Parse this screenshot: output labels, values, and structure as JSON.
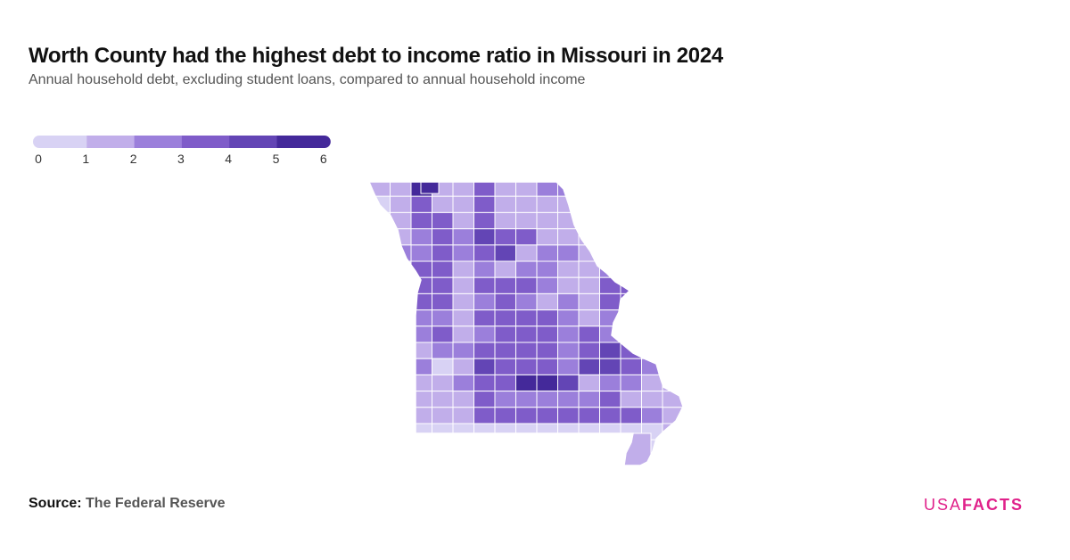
{
  "header": {
    "title": "Worth County had the highest debt to income ratio in Missouri in 2024",
    "subtitle": "Annual household debt, excluding student loans, compared to annual household income"
  },
  "legend": {
    "ticks": [
      "0",
      "1",
      "2",
      "3",
      "4",
      "5",
      "6"
    ],
    "colors": [
      "#d8d2f4",
      "#c1aeea",
      "#9b7fdb",
      "#7f5cc9",
      "#6345b5",
      "#44299a"
    ]
  },
  "map": {
    "region": "Missouri",
    "level_colors": [
      "#d8d2f4",
      "#c1aeea",
      "#9b7fdb",
      "#7f5cc9",
      "#6345b5",
      "#44299a"
    ],
    "highlight_county": "Worth County"
  },
  "footer": {
    "source_label": "Source:",
    "source_value": "The Federal Reserve",
    "logo_usa": "USA",
    "logo_facts": "FACTS"
  }
}
